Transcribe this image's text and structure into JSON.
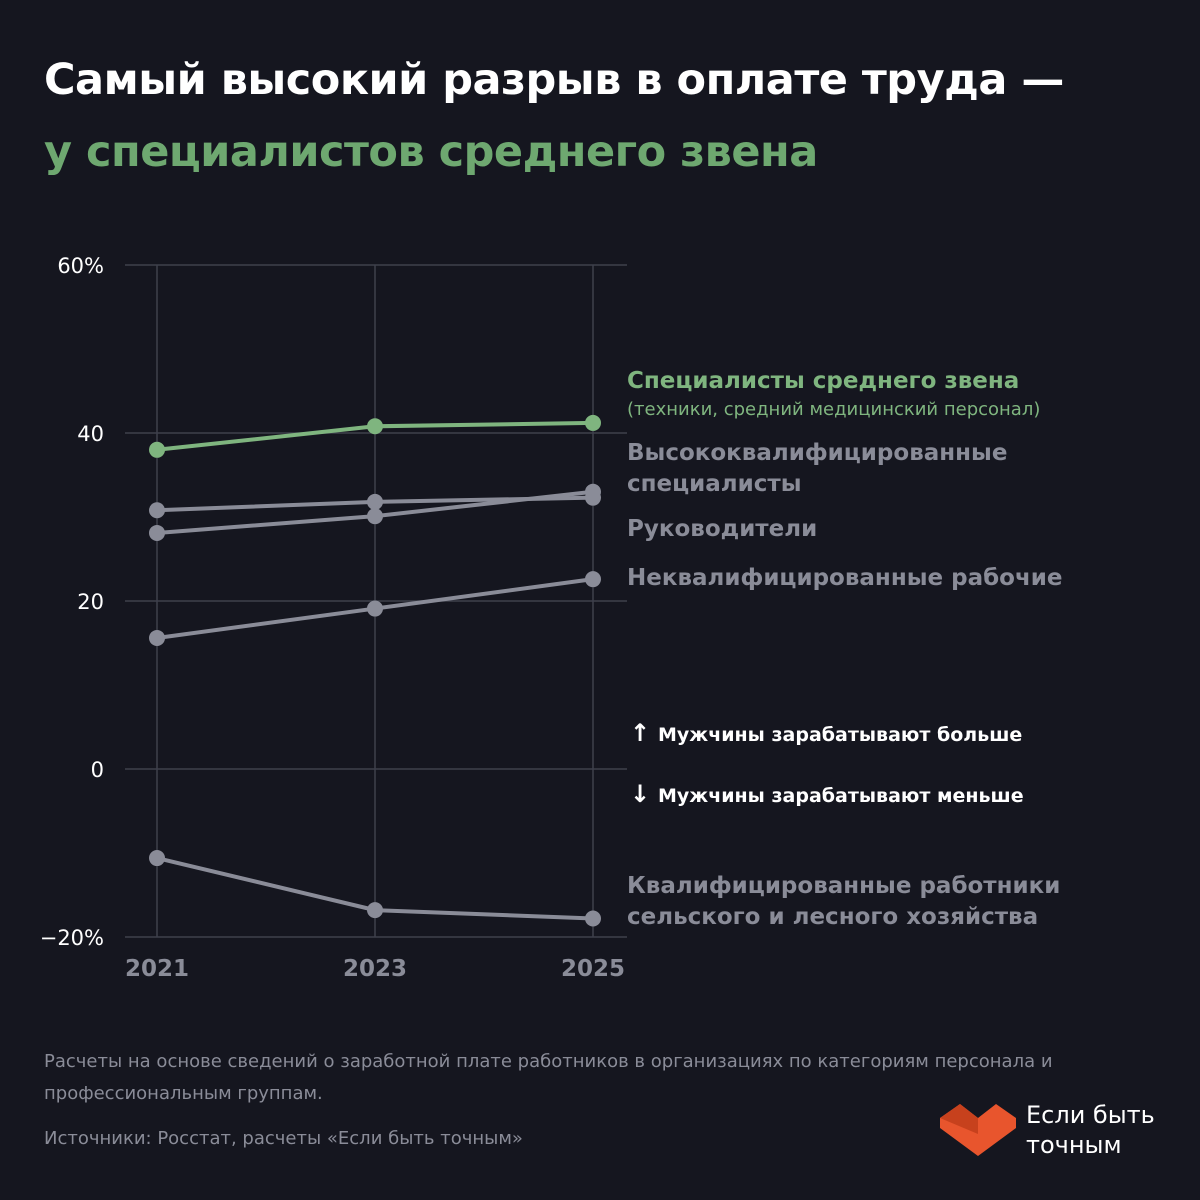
{
  "title": {
    "line1": "Самый высокий разрыв в оплате труда —",
    "line2": "у специалистов среднего звена"
  },
  "colors": {
    "background": "#15161f",
    "highlight": "#7fb57f",
    "muted": "#8a8c98",
    "grid": "#3e404c",
    "logo": "#e8552d"
  },
  "chart_data": {
    "type": "line",
    "x": [
      "2021",
      "2023",
      "2025"
    ],
    "y_ticks": [
      "60%",
      "40",
      "20",
      "0",
      "−20%"
    ],
    "y_tick_values": [
      60,
      40,
      20,
      0,
      -20
    ],
    "ylim": [
      -20,
      60
    ],
    "grid": true,
    "series": [
      {
        "name": "Специалисты среднего звена",
        "subtitle": "(техники, средний медицинский персонал)",
        "values": [
          38.0,
          40.8,
          41.2
        ],
        "highlight": true
      },
      {
        "name": "Высококвалифицированные специалисты",
        "values": [
          30.8,
          31.8,
          32.3
        ],
        "highlight": false
      },
      {
        "name": "Руководители",
        "values": [
          28.1,
          30.1,
          33.0
        ],
        "highlight": false
      },
      {
        "name": "Неквалифицированные рабочие",
        "values": [
          15.6,
          19.1,
          22.6
        ],
        "highlight": false
      },
      {
        "name": "Квалифицированные работники сельского и лесного хозяйства",
        "values": [
          -10.6,
          -16.8,
          -17.8
        ],
        "highlight": false
      }
    ],
    "annotations": {
      "above_zero": "Мужчины зарабатывают больше",
      "below_zero": "Мужчины зарабатывают меньше"
    }
  },
  "labels": {
    "spec_mid": "Специалисты среднего звена",
    "spec_mid_sub": "(техники, средний медицинский персонал)",
    "high_qual_1": "Высококвалифицированные",
    "high_qual_2": "специалисты",
    "managers": "Руководители",
    "unskilled": "Неквалифицированные рабочие",
    "agri_1": "Квалифицированные работники",
    "agri_2": "сельского и лесного хозяйства"
  },
  "arrows": {
    "up": "↑",
    "down": "↓",
    "up_text": "Мужчины зарабатывают больше",
    "down_text": "Мужчины зарабатывают меньше"
  },
  "footer": {
    "note": "Расчеты на основе сведений о заработной плате работников в организациях по категориям персонала и профессиональным группам.",
    "source": "Источники: Росстат, расчеты «Если быть точным»"
  },
  "logo": {
    "icon": "heart-chevron-icon",
    "line1": "Если быть",
    "line2": "точным"
  }
}
